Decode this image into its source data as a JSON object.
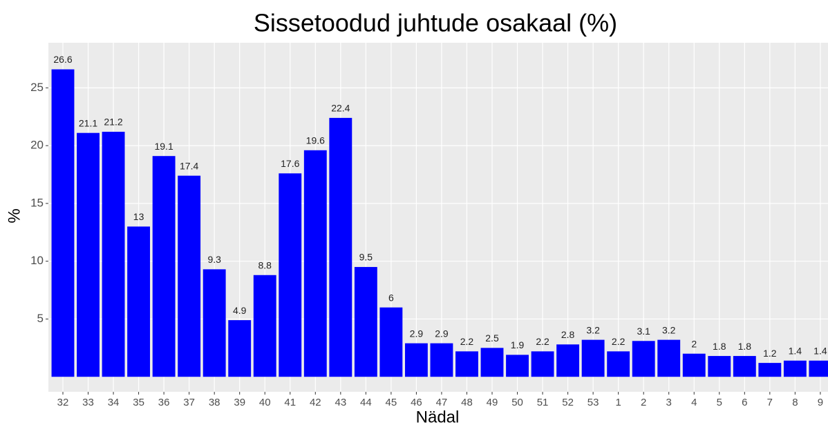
{
  "chart_data": {
    "type": "bar",
    "title": "Sissetoodud juhtude osakaal (%)",
    "x_label": "Nädal",
    "y_label": "%",
    "categories": [
      "32",
      "33",
      "34",
      "35",
      "36",
      "37",
      "38",
      "39",
      "40",
      "41",
      "42",
      "43",
      "44",
      "45",
      "46",
      "47",
      "48",
      "49",
      "50",
      "51",
      "52",
      "53",
      "1",
      "2",
      "3",
      "4",
      "5",
      "6",
      "7",
      "8",
      "9"
    ],
    "values": [
      26.6,
      21.1,
      21.2,
      13,
      19.1,
      17.4,
      9.3,
      4.9,
      8.8,
      17.6,
      19.6,
      22.4,
      9.5,
      6,
      2.9,
      2.9,
      2.2,
      2.5,
      1.9,
      2.2,
      2.8,
      3.2,
      2.2,
      3.1,
      3.2,
      2,
      1.8,
      1.8,
      1.2,
      1.4,
      1.4
    ],
    "color": "#0000ff",
    "ylim": [
      -1.3,
      28.9
    ],
    "yticks": [
      5,
      10,
      15,
      20,
      25
    ],
    "grid": true
  }
}
